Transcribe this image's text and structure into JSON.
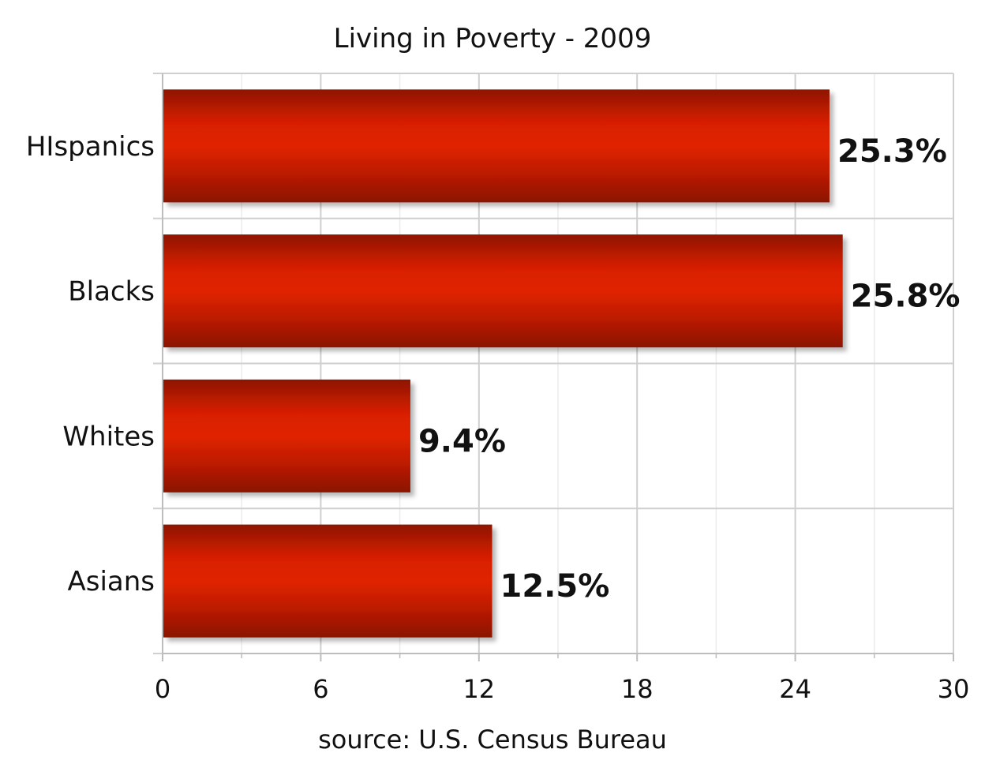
{
  "chart_data": {
    "type": "bar",
    "orientation": "horizontal",
    "title": "Living in Poverty - 2009",
    "categories": [
      "HIspanics",
      "Blacks",
      "Whites",
      "Asians"
    ],
    "values": [
      25.3,
      25.8,
      9.4,
      12.5
    ],
    "value_labels": [
      "25.3%",
      "25.8%",
      "9.4%",
      "12.5%"
    ],
    "xlim": [
      0,
      30
    ],
    "x_ticks": [
      0,
      6,
      12,
      18,
      24,
      30
    ],
    "x_tick_labels": [
      "0",
      "6",
      "12",
      "18",
      "24",
      "30"
    ],
    "xlabel": "source: U.S. Census Bureau",
    "ylabel": "",
    "grid": true,
    "legend": "none",
    "bar_color": "#cc2200"
  }
}
